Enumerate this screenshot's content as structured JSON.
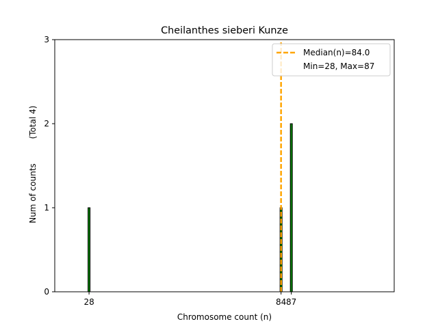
{
  "chart_data": {
    "type": "bar",
    "title": "Cheilanthes sieberi Kunze",
    "xlabel": "Chromosome count (n)",
    "ylabel": "Num of counts",
    "ylabel_total": "(Total 4)",
    "xlim": [
      18,
      117
    ],
    "ylim": [
      0,
      3
    ],
    "yticks": [
      0,
      1,
      2,
      3
    ],
    "xticks": [
      28,
      84,
      87
    ],
    "bar_width": 0.6,
    "bar_fill_color": "#008000",
    "bar_edge_color": "#000000",
    "bars": [
      {
        "x": 28,
        "count": 1
      },
      {
        "x": 84,
        "count": 1
      },
      {
        "x": 87,
        "count": 2
      }
    ],
    "median": {
      "value": 84.0,
      "color": "#FFA500",
      "style": "dashed"
    },
    "grid": false,
    "legend": {
      "placement": "top-right",
      "entries": [
        {
          "label": "Median(n)=84.0",
          "marker": "dashed-line",
          "color": "#FFA500"
        },
        {
          "label": "Min=28, Max=87",
          "marker": "none"
        }
      ]
    }
  }
}
